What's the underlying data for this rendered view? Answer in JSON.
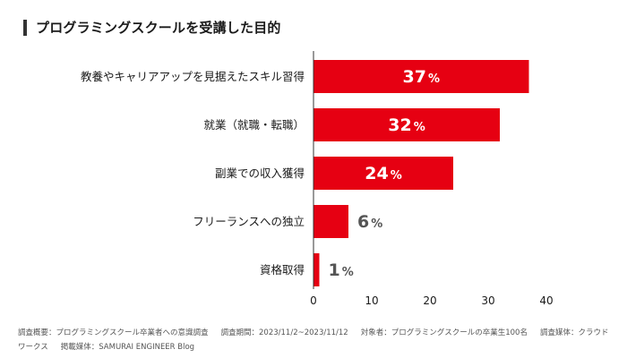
{
  "title": "プログラミングスクールを受講した目的",
  "footer": {
    "survey_summary": "調査概要：プログラミングスクール卒業者への意識調査",
    "survey_period": "調査期間：2023/11/2~2023/11/12",
    "target": "対象者：プログラミングスクールの卒業生100名",
    "survey_medium": "調査媒体：クラウドワークス",
    "published": "掲載媒体：SAMURAI ENGINEER Blog"
  },
  "colors": {
    "bar": "#e60012",
    "inside_label": "#ffffff",
    "outside_label": "#555555",
    "axis": "#333333"
  },
  "chart_data": {
    "type": "bar",
    "orientation": "horizontal",
    "title": "プログラミングスクールを受講した目的",
    "categories": [
      "教養やキャリアアップを見据えたスキル習得",
      "就業（就職・転職）",
      "副業での収入獲得",
      "フリーランスへの独立",
      "資格取得"
    ],
    "values": [
      37,
      32,
      24,
      6,
      1
    ],
    "value_suffix": "%",
    "xlim": [
      0,
      40
    ],
    "xticks": [
      0,
      10,
      20,
      30,
      40
    ],
    "xlabel": "",
    "ylabel": "",
    "grid": false,
    "legend": false
  }
}
